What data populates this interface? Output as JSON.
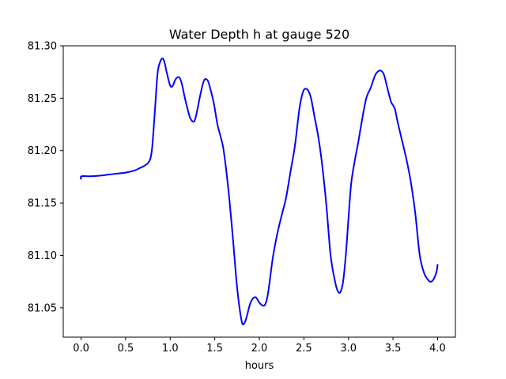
{
  "chart_data": {
    "type": "line",
    "title": "Water Depth h at gauge 520",
    "xlabel": "hours",
    "ylabel": "",
    "xlim": [
      -0.2,
      4.2
    ],
    "ylim": [
      81.022,
      81.3
    ],
    "xticks": [
      0.0,
      0.5,
      1.0,
      1.5,
      2.0,
      2.5,
      3.0,
      3.5,
      4.0
    ],
    "xtick_labels": [
      "0.0",
      "0.5",
      "1.0",
      "1.5",
      "2.0",
      "2.5",
      "3.0",
      "3.5",
      "4.0"
    ],
    "yticks": [
      81.05,
      81.1,
      81.15,
      81.2,
      81.25,
      81.3
    ],
    "ytick_labels": [
      "81.05",
      "81.10",
      "81.15",
      "81.20",
      "81.25",
      "81.30"
    ],
    "grid": false,
    "series": [
      {
        "color": "#0000ff",
        "x": [
          0.0,
          0.005,
          0.1,
          0.2,
          0.3,
          0.4,
          0.5,
          0.6,
          0.65,
          0.7,
          0.75,
          0.78,
          0.8,
          0.83,
          0.86,
          0.9,
          0.93,
          0.96,
          1.0,
          1.03,
          1.06,
          1.1,
          1.13,
          1.16,
          1.2,
          1.23,
          1.27,
          1.3,
          1.34,
          1.38,
          1.42,
          1.45,
          1.49,
          1.53,
          1.57,
          1.6,
          1.65,
          1.7,
          1.75,
          1.8,
          1.83,
          1.86,
          1.89,
          1.92,
          1.96,
          2.0,
          2.04,
          2.07,
          2.1,
          2.15,
          2.2,
          2.25,
          2.3,
          2.35,
          2.4,
          2.45,
          2.49,
          2.52,
          2.55,
          2.58,
          2.62,
          2.66,
          2.7,
          2.75,
          2.8,
          2.85,
          2.88,
          2.91,
          2.94,
          2.97,
          3.0,
          3.03,
          3.07,
          3.11,
          3.15,
          3.2,
          3.25,
          3.3,
          3.34,
          3.37,
          3.4,
          3.43,
          3.46,
          3.48,
          3.52,
          3.55,
          3.6,
          3.65,
          3.7,
          3.75,
          3.8,
          3.85,
          3.9,
          3.93,
          3.96,
          3.99,
          4.0
        ],
        "y": [
          81.173,
          81.1755,
          81.1755,
          81.176,
          81.177,
          81.178,
          81.179,
          81.181,
          81.183,
          81.185,
          81.188,
          81.193,
          81.205,
          81.24,
          81.275,
          81.287,
          81.286,
          81.275,
          81.262,
          81.262,
          81.268,
          81.27,
          81.264,
          81.252,
          81.238,
          81.23,
          81.228,
          81.237,
          81.254,
          81.267,
          81.267,
          81.259,
          81.245,
          81.225,
          81.212,
          81.2,
          81.165,
          81.12,
          81.07,
          81.038,
          81.035,
          81.042,
          81.052,
          81.058,
          81.06,
          81.055,
          81.052,
          81.054,
          81.065,
          81.097,
          81.12,
          81.138,
          81.155,
          81.18,
          81.205,
          81.24,
          81.256,
          81.259,
          81.257,
          81.25,
          81.232,
          81.214,
          81.19,
          81.15,
          81.1,
          81.075,
          81.066,
          81.065,
          81.075,
          81.1,
          81.135,
          81.168,
          81.19,
          81.208,
          81.228,
          81.25,
          81.26,
          81.272,
          81.276,
          81.276,
          81.272,
          81.262,
          81.252,
          81.246,
          81.24,
          81.228,
          81.21,
          81.192,
          81.17,
          81.14,
          81.1,
          81.083,
          81.076,
          81.075,
          81.078,
          81.085,
          81.091
        ]
      }
    ]
  }
}
